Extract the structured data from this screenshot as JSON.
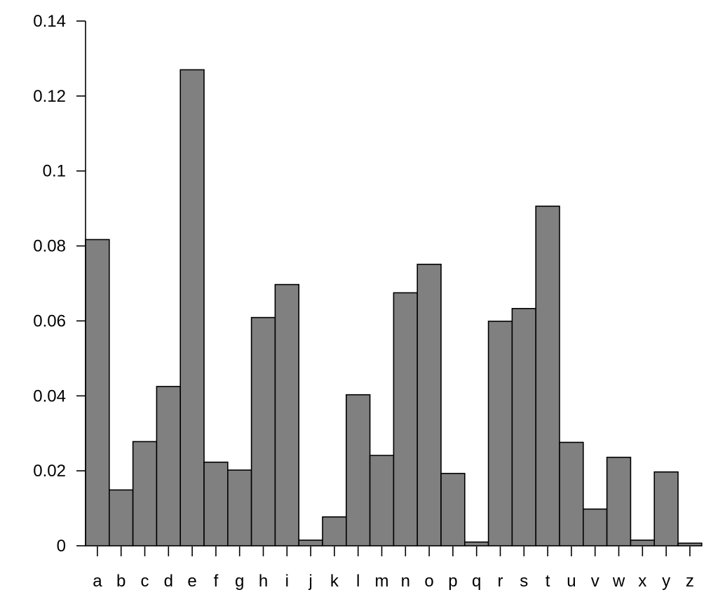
{
  "chart_data": {
    "type": "bar",
    "title": "",
    "xlabel": "",
    "ylabel": "",
    "ylim": [
      0,
      0.14
    ],
    "grid": false,
    "bar_color": "#808080",
    "edge_color": "#000000",
    "y_ticks": [
      0,
      0.02,
      0.04,
      0.06,
      0.08,
      0.1,
      0.12,
      0.14
    ],
    "y_tick_labels": [
      "0",
      "0.02",
      "0.04",
      "0.06",
      "0.08",
      "0.1",
      "0.12",
      "0.14"
    ],
    "categories": [
      "a",
      "b",
      "c",
      "d",
      "e",
      "f",
      "g",
      "h",
      "i",
      "j",
      "k",
      "l",
      "m",
      "n",
      "o",
      "p",
      "q",
      "r",
      "s",
      "t",
      "u",
      "v",
      "w",
      "x",
      "y",
      "z"
    ],
    "values": [
      0.0817,
      0.0149,
      0.0278,
      0.0425,
      0.127,
      0.0223,
      0.0202,
      0.0609,
      0.0697,
      0.0015,
      0.0077,
      0.0403,
      0.0241,
      0.0675,
      0.0751,
      0.0193,
      0.001,
      0.0599,
      0.0633,
      0.0906,
      0.0276,
      0.0098,
      0.0236,
      0.0015,
      0.0197,
      0.0007
    ]
  }
}
